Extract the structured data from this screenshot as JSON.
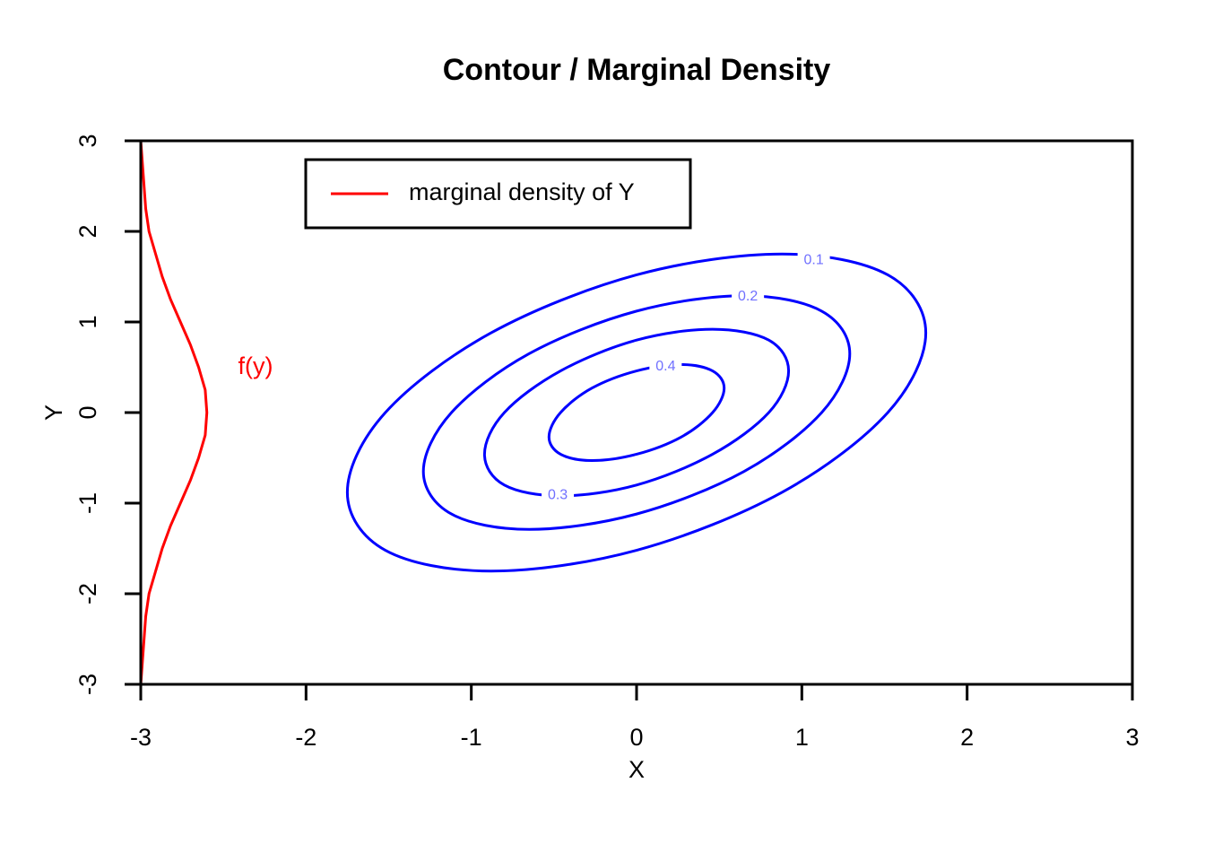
{
  "chart_data": {
    "type": "contour",
    "title": "Contour / Marginal Density",
    "x_label": "X",
    "y_label": "Y",
    "xlim": [
      -3,
      3
    ],
    "ylim": [
      -3,
      3
    ],
    "xticks": [
      -3,
      -2,
      -1,
      0,
      1,
      2,
      3
    ],
    "yticks": [
      -3,
      -2,
      -1,
      0,
      1,
      2,
      3
    ],
    "contour_color": "#0000ff",
    "contours": [
      {
        "level": 0.1,
        "x": [
          1.75,
          1.52,
          0.88,
          0,
          -0.88,
          -1.52,
          -1.75,
          -1.52,
          -0.88,
          0,
          0.88,
          1.52
        ],
        "y": [
          0.88,
          1.52,
          1.75,
          1.52,
          0.88,
          0,
          -0.88,
          -1.52,
          -1.75,
          -1.52,
          -0.88,
          0
        ]
      },
      {
        "level": 0.2,
        "x": [
          1.29,
          1.12,
          0.65,
          0,
          -0.65,
          -1.12,
          -1.29,
          -1.12,
          -0.65,
          0,
          0.65,
          1.12
        ],
        "y": [
          0.65,
          1.12,
          1.29,
          1.12,
          0.65,
          0,
          -0.65,
          -1.12,
          -1.29,
          -1.12,
          -0.65,
          0
        ]
      },
      {
        "level": 0.3,
        "x": [
          0.92,
          0.8,
          0.46,
          0,
          -0.46,
          -0.8,
          -0.92,
          -0.8,
          -0.46,
          0,
          0.46,
          0.8
        ],
        "y": [
          0.46,
          0.8,
          0.92,
          0.8,
          0.46,
          0,
          -0.46,
          -0.8,
          -0.92,
          -0.8,
          -0.46,
          0
        ]
      },
      {
        "level": 0.4,
        "x": [
          0.53,
          0.46,
          0.27,
          0,
          -0.27,
          -0.46,
          -0.53,
          -0.46,
          -0.27,
          0,
          0.27,
          0.46
        ],
        "y": [
          0.27,
          0.46,
          0.53,
          0.46,
          0.27,
          0,
          -0.27,
          -0.46,
          -0.53,
          -0.46,
          -0.27,
          0
        ]
      }
    ],
    "series": [
      {
        "name": "marginal density of Y",
        "color": "#ff0000",
        "x": [
          -3.0,
          -2.99,
          -2.98,
          -2.97,
          -2.95,
          -2.91,
          -2.87,
          -2.82,
          -2.76,
          -2.7,
          -2.65,
          -2.61,
          -2.6,
          -2.61,
          -2.65,
          -2.7,
          -2.76,
          -2.82,
          -2.87,
          -2.91,
          -2.95,
          -2.97,
          -2.98,
          -2.99,
          -3.0
        ],
        "y": [
          -3,
          -2.75,
          -2.5,
          -2.25,
          -2,
          -1.75,
          -1.5,
          -1.25,
          -1,
          -0.75,
          -0.5,
          -0.25,
          0,
          0.25,
          0.5,
          0.75,
          1,
          1.25,
          1.5,
          1.75,
          2,
          2.25,
          2.5,
          2.75,
          3
        ]
      }
    ],
    "annotation": "f(y)",
    "legend": "top-left"
  }
}
